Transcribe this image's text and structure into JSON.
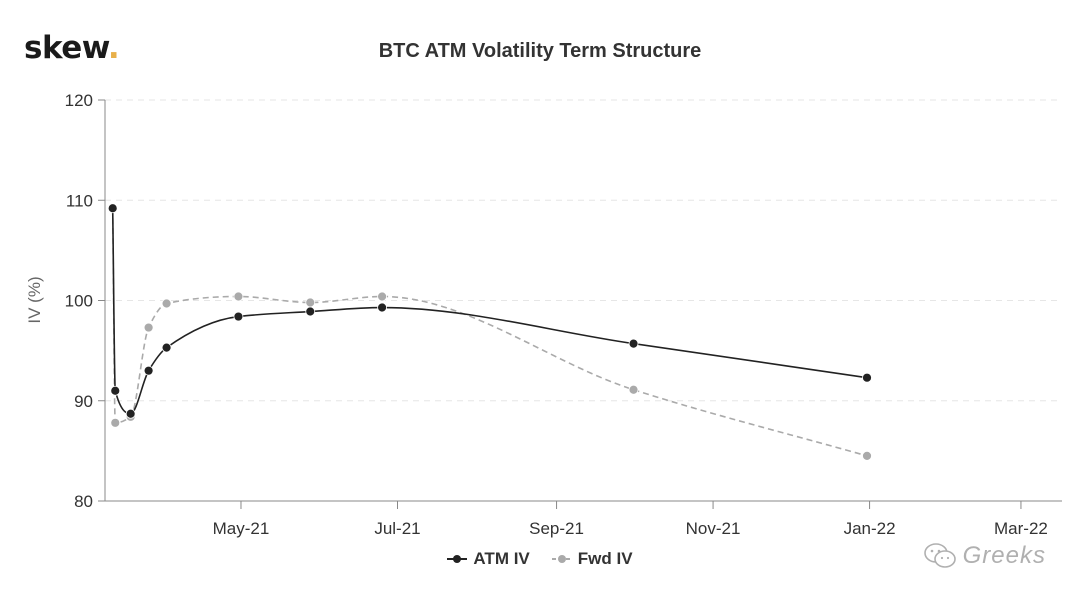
{
  "brand": {
    "logo_text": "skew",
    "logo_dot": ".",
    "dot_color": "#e8b04a"
  },
  "watermark": {
    "icon": "wechat-icon",
    "text": "Greeks"
  },
  "chart_data": {
    "type": "line",
    "title": "BTC ATM Volatility Term Structure",
    "ylabel": "IV (%)",
    "xlabel": "",
    "ylim": [
      80,
      120
    ],
    "yticks": [
      80,
      90,
      100,
      110,
      120
    ],
    "xlim": [
      "2021-03-09",
      "2022-03-17"
    ],
    "xticks": [
      {
        "date": "2021-05-01",
        "label": "May-21"
      },
      {
        "date": "2021-07-01",
        "label": "Jul-21"
      },
      {
        "date": "2021-09-01",
        "label": "Sep-21"
      },
      {
        "date": "2021-11-01",
        "label": "Nov-21"
      },
      {
        "date": "2022-01-01",
        "label": "Jan-22"
      },
      {
        "date": "2022-03-01",
        "label": "Mar-22"
      }
    ],
    "grid": {
      "horizontal": true,
      "vertical": false
    },
    "legend_position": "bottom-center",
    "series": [
      {
        "name": "ATM IV",
        "color": "#222222",
        "dash": "solid",
        "points": [
          {
            "x": "2021-03-12",
            "y": 109.2
          },
          {
            "x": "2021-03-13",
            "y": 91.0
          },
          {
            "x": "2021-03-19",
            "y": 88.7
          },
          {
            "x": "2021-03-26",
            "y": 93.0
          },
          {
            "x": "2021-04-02",
            "y": 95.3
          },
          {
            "x": "2021-04-30",
            "y": 98.4
          },
          {
            "x": "2021-05-28",
            "y": 98.9
          },
          {
            "x": "2021-06-25",
            "y": 99.3
          },
          {
            "x": "2021-10-01",
            "y": 95.7
          },
          {
            "x": "2021-12-31",
            "y": 92.3
          }
        ]
      },
      {
        "name": "Fwd IV",
        "color": "#aaaaaa",
        "dash": "dashed",
        "points": [
          {
            "x": "2021-03-12",
            "y": 109.2
          },
          {
            "x": "2021-03-13",
            "y": 87.8
          },
          {
            "x": "2021-03-19",
            "y": 88.4
          },
          {
            "x": "2021-03-26",
            "y": 97.3
          },
          {
            "x": "2021-04-02",
            "y": 99.7
          },
          {
            "x": "2021-04-30",
            "y": 100.4
          },
          {
            "x": "2021-05-28",
            "y": 99.8
          },
          {
            "x": "2021-06-25",
            "y": 100.4
          },
          {
            "x": "2021-10-01",
            "y": 91.1
          },
          {
            "x": "2021-12-31",
            "y": 84.5
          }
        ]
      }
    ]
  }
}
